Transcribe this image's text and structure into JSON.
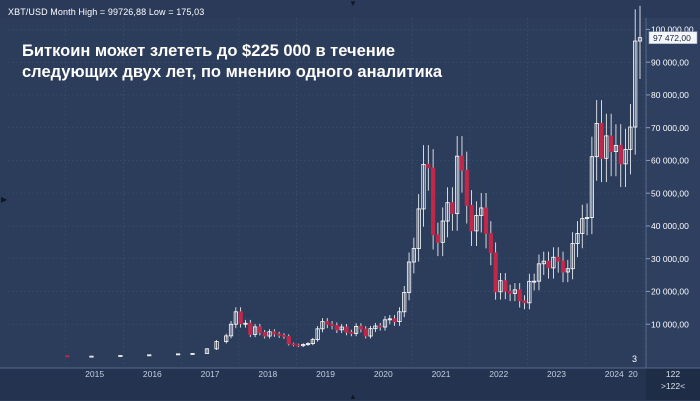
{
  "header": {
    "symbol_line": "XBT/USD Month High = 99726,88 Low = 175,03"
  },
  "headline": "Биткоин может злететь до $225 000 в течение следующих двух лет, по мнению одного аналитика",
  "indicators": {
    "last_price_label": "97 472,00",
    "bars_label": "3",
    "zoom_count": "122",
    "zoom_more": ">122<"
  },
  "colors": {
    "background": "#2c3c5b",
    "up_candle": "#ffffff",
    "down_candle": "#c0284a",
    "axis_text": "#ffffff",
    "grid": "#3d4d6c"
  },
  "chart_data": {
    "type": "candlestick",
    "title": "Биткоин может злететь до $225 000 в течение следующих двух лет, по мнению одного аналитика",
    "xlabel": "",
    "ylabel": "",
    "x_ticks": [
      "2015",
      "2016",
      "2017",
      "2018",
      "2019",
      "2020",
      "2021",
      "2022",
      "2023",
      "2024",
      "20"
    ],
    "y_ticks": [
      "10 000,00",
      "20 000,00",
      "30 000,00",
      "40 000,00",
      "50 000,00",
      "60 000,00",
      "70 000,00",
      "80 000,00",
      "90 000,00",
      "100 000,00"
    ],
    "ylim": [
      0,
      100000
    ],
    "interval": "Month",
    "last_value": 97472,
    "period_high": 99726.88,
    "period_low": 175.03,
    "grid": true,
    "legend": "none",
    "series_close": [
      [
        "2014-11",
        378
      ],
      [
        "2015-01",
        217
      ],
      [
        "2015-06",
        263
      ],
      [
        "2015-12",
        430
      ],
      [
        "2016-06",
        670
      ],
      [
        "2016-12",
        960
      ],
      [
        "2017-03",
        1080
      ],
      [
        "2017-06",
        2480
      ],
      [
        "2017-08",
        4700
      ],
      [
        "2017-10",
        6450
      ],
      [
        "2017-11",
        10000
      ],
      [
        "2017-12",
        13800
      ],
      [
        "2018-01",
        10200
      ],
      [
        "2018-02",
        10300
      ],
      [
        "2018-03",
        6900
      ],
      [
        "2018-04",
        9200
      ],
      [
        "2018-05",
        7500
      ],
      [
        "2018-06",
        6400
      ],
      [
        "2018-07",
        7700
      ],
      [
        "2018-08",
        7000
      ],
      [
        "2018-09",
        6600
      ],
      [
        "2018-10",
        6300
      ],
      [
        "2018-11",
        4000
      ],
      [
        "2018-12",
        3700
      ],
      [
        "2019-01",
        3450
      ],
      [
        "2019-02",
        3800
      ],
      [
        "2019-03",
        4100
      ],
      [
        "2019-04",
        5300
      ],
      [
        "2019-05",
        8600
      ],
      [
        "2019-06",
        10800
      ],
      [
        "2019-07",
        10000
      ],
      [
        "2019-08",
        9600
      ],
      [
        "2019-09",
        8300
      ],
      [
        "2019-10",
        9150
      ],
      [
        "2019-11",
        7550
      ],
      [
        "2019-12",
        7200
      ],
      [
        "2020-01",
        9350
      ],
      [
        "2020-02",
        8550
      ],
      [
        "2020-03",
        6400
      ],
      [
        "2020-04",
        8650
      ],
      [
        "2020-05",
        9450
      ],
      [
        "2020-06",
        9150
      ],
      [
        "2020-07",
        11350
      ],
      [
        "2020-08",
        11650
      ],
      [
        "2020-09",
        10800
      ],
      [
        "2020-10",
        13800
      ],
      [
        "2020-11",
        19700
      ],
      [
        "2020-12",
        29000
      ],
      [
        "2021-01",
        33100
      ],
      [
        "2021-02",
        45200
      ],
      [
        "2021-03",
        58800
      ],
      [
        "2021-04",
        57700
      ],
      [
        "2021-05",
        37300
      ],
      [
        "2021-06",
        35000
      ],
      [
        "2021-07",
        41500
      ],
      [
        "2021-08",
        47100
      ],
      [
        "2021-09",
        43800
      ],
      [
        "2021-10",
        61300
      ],
      [
        "2021-11",
        57000
      ],
      [
        "2021-12",
        46300
      ],
      [
        "2022-01",
        38500
      ],
      [
        "2022-02",
        43200
      ],
      [
        "2022-03",
        45500
      ],
      [
        "2022-04",
        37700
      ],
      [
        "2022-05",
        31800
      ],
      [
        "2022-06",
        19900
      ],
      [
        "2022-07",
        23300
      ],
      [
        "2022-08",
        20050
      ],
      [
        "2022-09",
        19400
      ],
      [
        "2022-10",
        20500
      ],
      [
        "2022-11",
        17150
      ],
      [
        "2022-12",
        16550
      ],
      [
        "2023-01",
        23100
      ],
      [
        "2023-02",
        23150
      ],
      [
        "2023-03",
        28450
      ],
      [
        "2023-04",
        29250
      ],
      [
        "2023-05",
        27200
      ],
      [
        "2023-06",
        30450
      ],
      [
        "2023-07",
        29250
      ],
      [
        "2023-08",
        25950
      ],
      [
        "2023-09",
        26950
      ],
      [
        "2023-10",
        34650
      ],
      [
        "2023-11",
        37700
      ],
      [
        "2023-12",
        42250
      ],
      [
        "2024-01",
        42600
      ],
      [
        "2024-02",
        61150
      ],
      [
        "2024-03",
        71300
      ],
      [
        "2024-04",
        60650
      ],
      [
        "2024-05",
        67500
      ],
      [
        "2024-06",
        62700
      ],
      [
        "2024-07",
        64600
      ],
      [
        "2024-08",
        58950
      ],
      [
        "2024-09",
        63350
      ],
      [
        "2024-10",
        70200
      ],
      [
        "2024-11",
        96450
      ],
      [
        "2024-12",
        97472
      ]
    ]
  }
}
